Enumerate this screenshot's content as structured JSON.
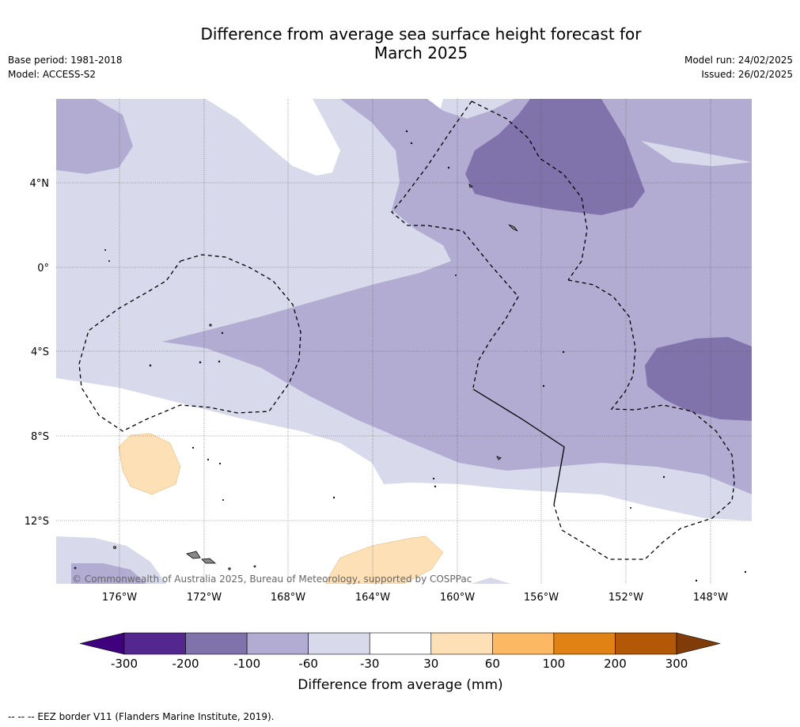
{
  "title_line1": "Difference from average sea surface height forecast for",
  "title_line2": "March 2025",
  "base_period": "Base period: 1981-2018",
  "model": "Model: ACCESS-S2",
  "model_run": "Model run: 24/02/2025",
  "issued": "Issued: 26/02/2025",
  "copyright": "© Commonwealth of Australia 2025, Bureau of Meteorology, supported by COSPPac",
  "lat_labels": [
    "4°N",
    "0°",
    "4°S",
    "8°S",
    "12°S"
  ],
  "lon_labels": [
    "176°W",
    "172°W",
    "168°W",
    "164°W",
    "160°W",
    "156°W",
    "152°W",
    "148°W"
  ],
  "colorbar": {
    "title": "Difference from average (mm)",
    "ticks": [
      "-300",
      "-200",
      "-100",
      "-60",
      "-30",
      "30",
      "60",
      "100",
      "200",
      "300"
    ],
    "colors": [
      "#3f007d",
      "#54278f",
      "#8073ac",
      "#b2abd2",
      "#d8daeb",
      "#ffffff",
      "#fee0b6",
      "#fdb863",
      "#e08214",
      "#b35806",
      "#7f3b08"
    ]
  },
  "footnote": "--  --  -- EEZ border V11 (Flanders Marine Institute, 2019)."
}
